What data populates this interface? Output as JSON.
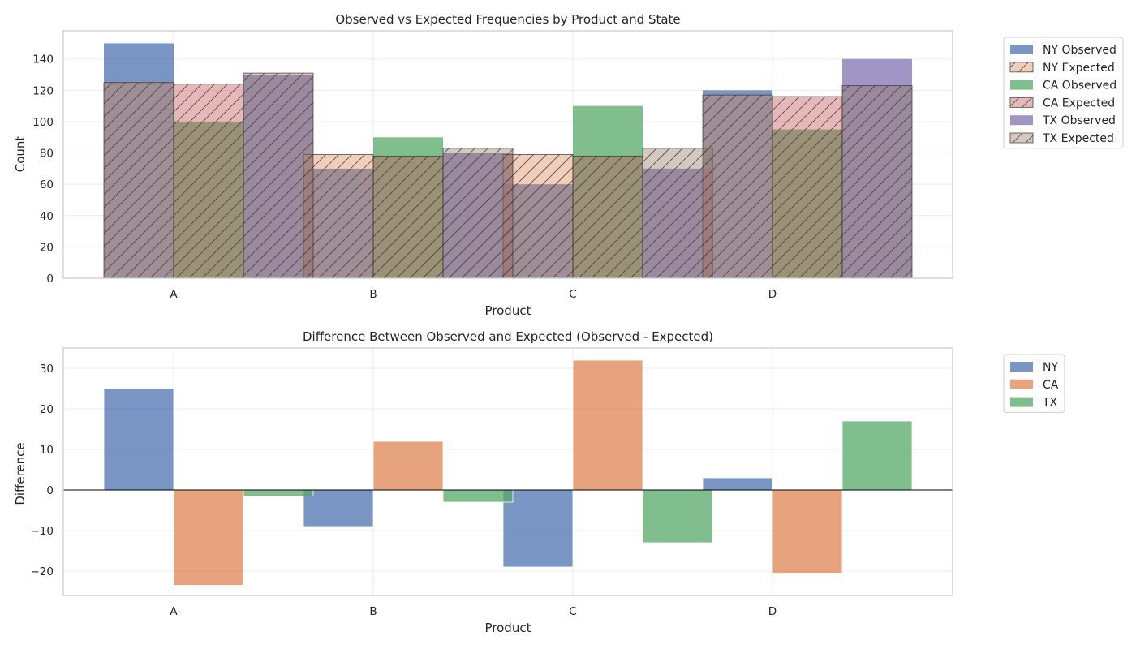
{
  "colors": {
    "NY": "#4c72b0",
    "CA": "#dd8452",
    "TX": "#55a868",
    "CA_expected": "#c44e52",
    "TX_expected_top": "#8172b3",
    "TX_expected_fill": "#937860",
    "grid": "#ebebeb",
    "frame": "#cccccc",
    "zero_line": "#000000"
  },
  "chart_data": [
    {
      "type": "bar",
      "title": "Observed vs Expected Frequencies by Product and State",
      "xlabel": "Product",
      "ylabel": "Count",
      "categories": [
        "A",
        "B",
        "C",
        "D"
      ],
      "ylim": [
        0,
        158
      ],
      "yticks": [
        0,
        20,
        40,
        60,
        80,
        100,
        120,
        140
      ],
      "ytick_labels": [
        "0",
        "20",
        "40",
        "60",
        "80",
        "100",
        "120",
        "140"
      ],
      "grid": true,
      "legend_position": "outside-top-right",
      "series": [
        {
          "name": "NY Observed",
          "kind": "observed",
          "color_key": "NY",
          "values": [
            150,
            70,
            60,
            120
          ]
        },
        {
          "name": "NY Expected",
          "kind": "expected",
          "color_key": "CA",
          "values": [
            125,
            79,
            79,
            117
          ]
        },
        {
          "name": "CA Observed",
          "kind": "observed",
          "color_key": "TX",
          "values": [
            100,
            90,
            110,
            95
          ]
        },
        {
          "name": "CA Expected",
          "kind": "expected",
          "color_key": "CA_expected",
          "values": [
            124,
            78,
            78,
            116
          ]
        },
        {
          "name": "TX Observed",
          "kind": "observed",
          "color_key": "TX_expected_top",
          "values": [
            130,
            80,
            70,
            140
          ]
        },
        {
          "name": "TX Expected",
          "kind": "expected",
          "color_key": "TX_expected_fill",
          "values": [
            131,
            83,
            83,
            123
          ]
        }
      ]
    },
    {
      "type": "bar",
      "title": "Difference Between Observed and Expected (Observed - Expected)",
      "xlabel": "Product",
      "ylabel": "Difference",
      "categories": [
        "A",
        "B",
        "C",
        "D"
      ],
      "ylim": [
        -26,
        35
      ],
      "yticks": [
        -20,
        -10,
        0,
        10,
        20,
        30
      ],
      "ytick_labels": [
        "−20",
        "−10",
        "0",
        "10",
        "20",
        "30"
      ],
      "grid": true,
      "legend_position": "outside-top-right",
      "series": [
        {
          "name": "NY",
          "color_key": "NY",
          "values": [
            25,
            -9,
            -19,
            3
          ]
        },
        {
          "name": "CA",
          "color_key": "CA",
          "values": [
            -23.5,
            12,
            32,
            -20.5
          ]
        },
        {
          "name": "TX",
          "color_key": "TX",
          "values": [
            -1.5,
            -3,
            -13,
            17
          ]
        }
      ]
    }
  ]
}
